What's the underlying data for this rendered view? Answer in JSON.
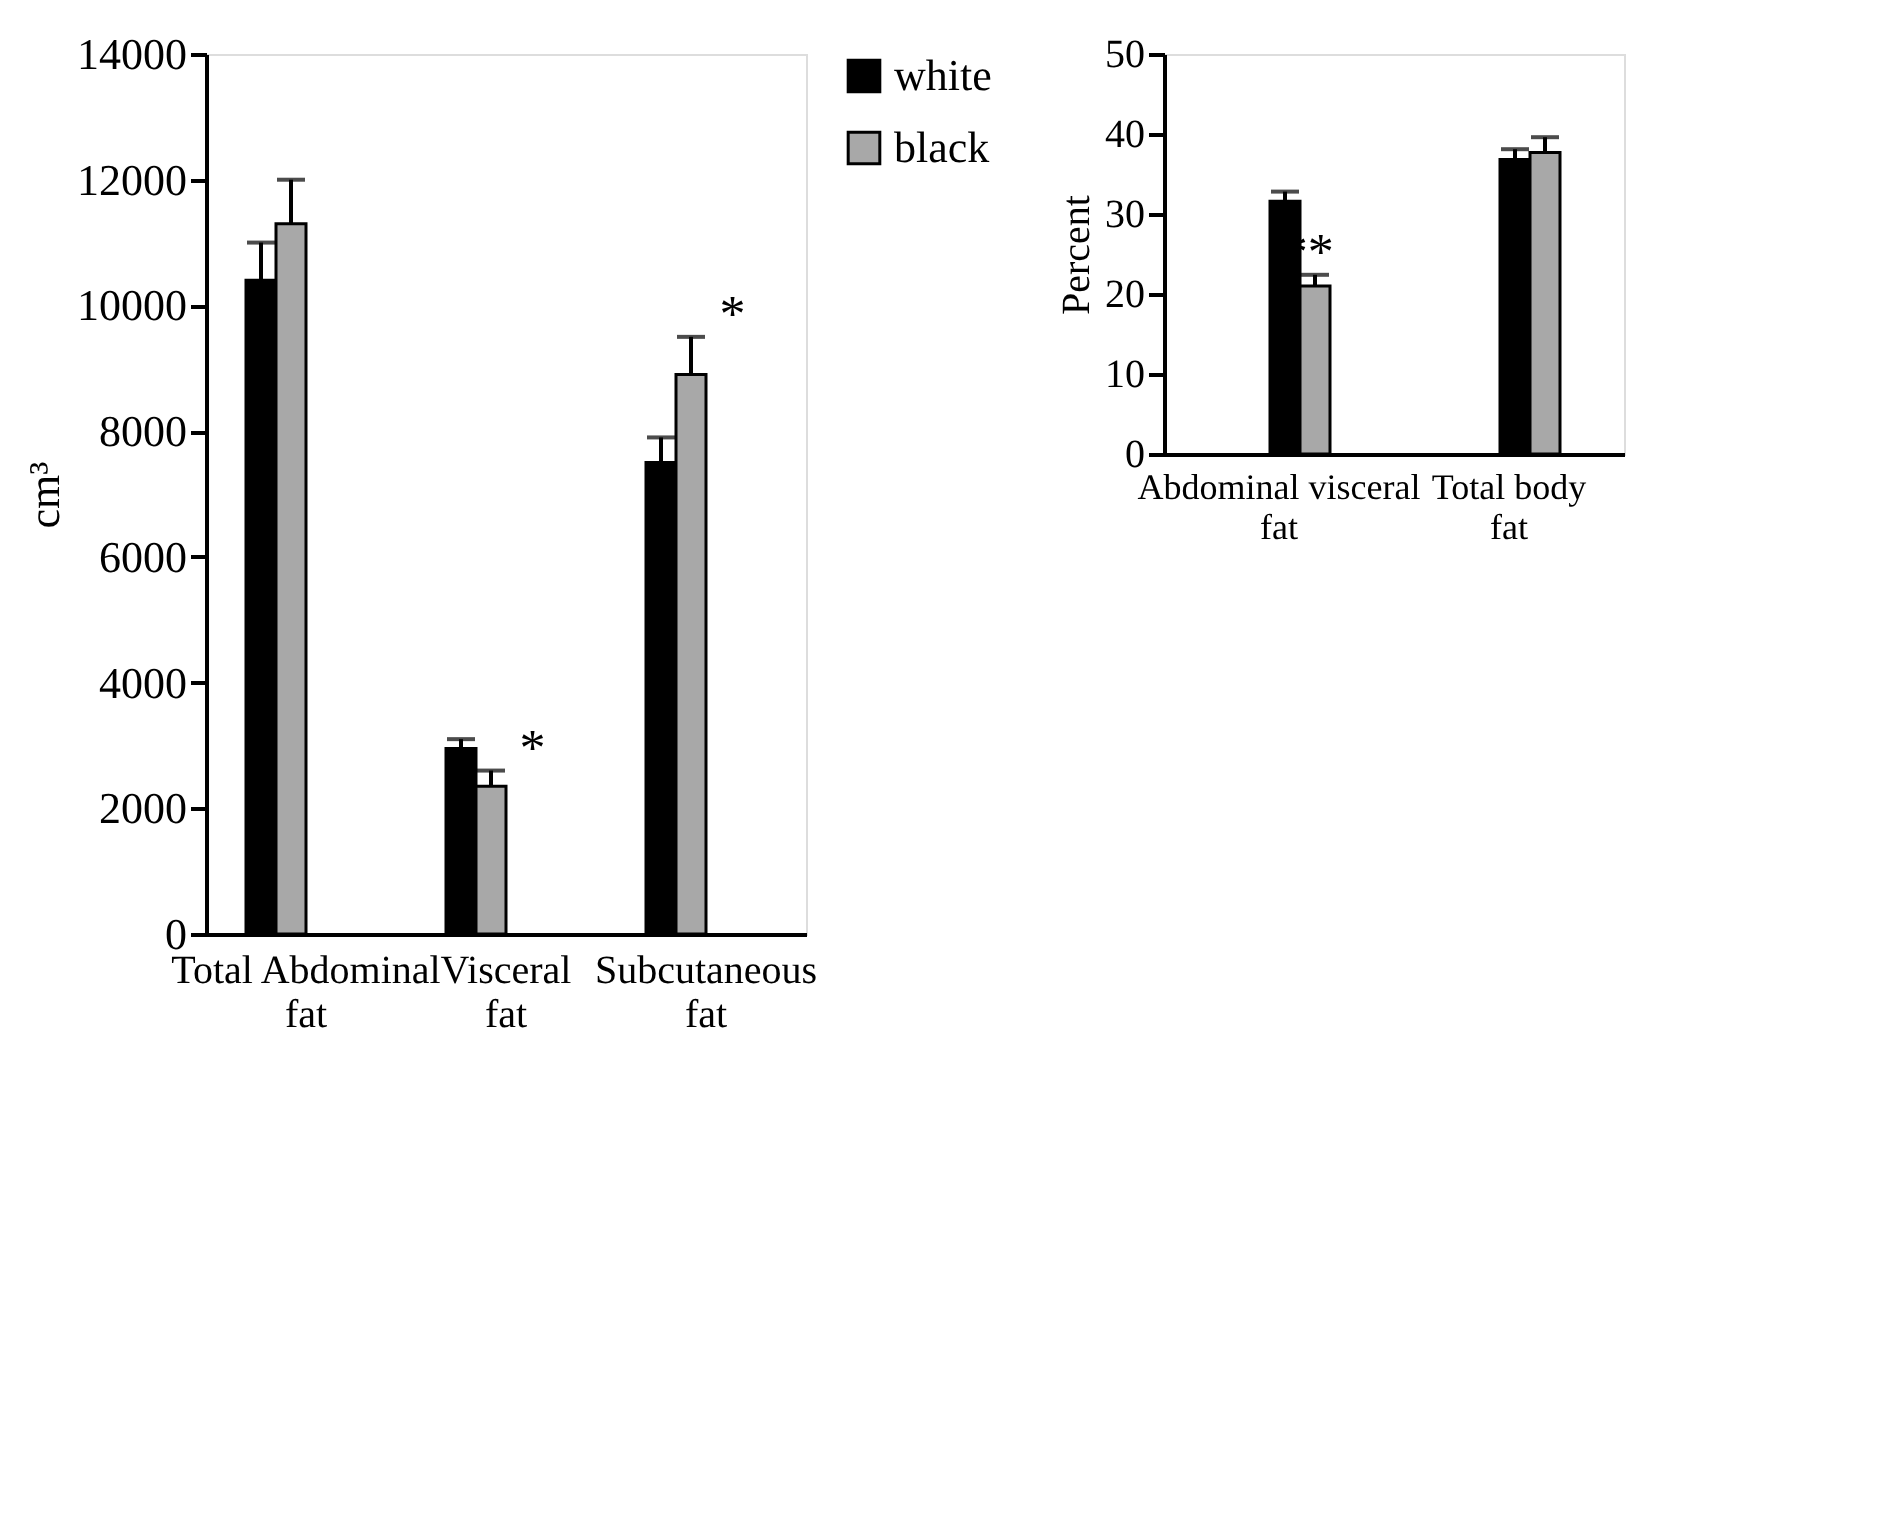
{
  "chart_data": [
    {
      "type": "bar",
      "ylabel": "cm³",
      "categories": [
        "Total Abdominal fat",
        "Visceral fat",
        "Subcutaneous fat"
      ],
      "series": [
        {
          "name": "white",
          "color": "#000000",
          "values": [
            10400,
            2950,
            7500
          ],
          "errors": [
            600,
            150,
            400
          ]
        },
        {
          "name": "black",
          "color": "#a8a8a8",
          "values": [
            11300,
            2350,
            8900
          ],
          "errors": [
            700,
            250,
            600
          ]
        }
      ],
      "ylim": [
        0,
        14000
      ],
      "yticks": [
        0,
        2000,
        4000,
        6000,
        8000,
        10000,
        12000,
        14000
      ],
      "grid": false,
      "legend": "right",
      "annotations": [
        {
          "text": "*",
          "x": "Visceral fat",
          "y": 2350
        },
        {
          "text": "*",
          "x": "Subcutaneous fat",
          "y": 8900
        }
      ]
    },
    {
      "type": "bar",
      "ylabel": "Percent",
      "categories": [
        "Abdominal visceral fat",
        "Total body fat"
      ],
      "series": [
        {
          "color": "#000000",
          "values": [
            31.6,
            36.8
          ],
          "errors": [
            1.2,
            1.3
          ]
        },
        {
          "color": "#a8a8a8",
          "values": [
            21.0,
            37.7
          ],
          "errors": [
            1.4,
            1.9
          ]
        }
      ],
      "ylim": [
        0,
        50
      ],
      "yticks": [
        0,
        10,
        20,
        30,
        40,
        50
      ],
      "grid": false,
      "legend": false,
      "annotations": [
        {
          "text": "**",
          "x": "Abdominal visceral fat",
          "y": 21.0
        }
      ]
    }
  ]
}
